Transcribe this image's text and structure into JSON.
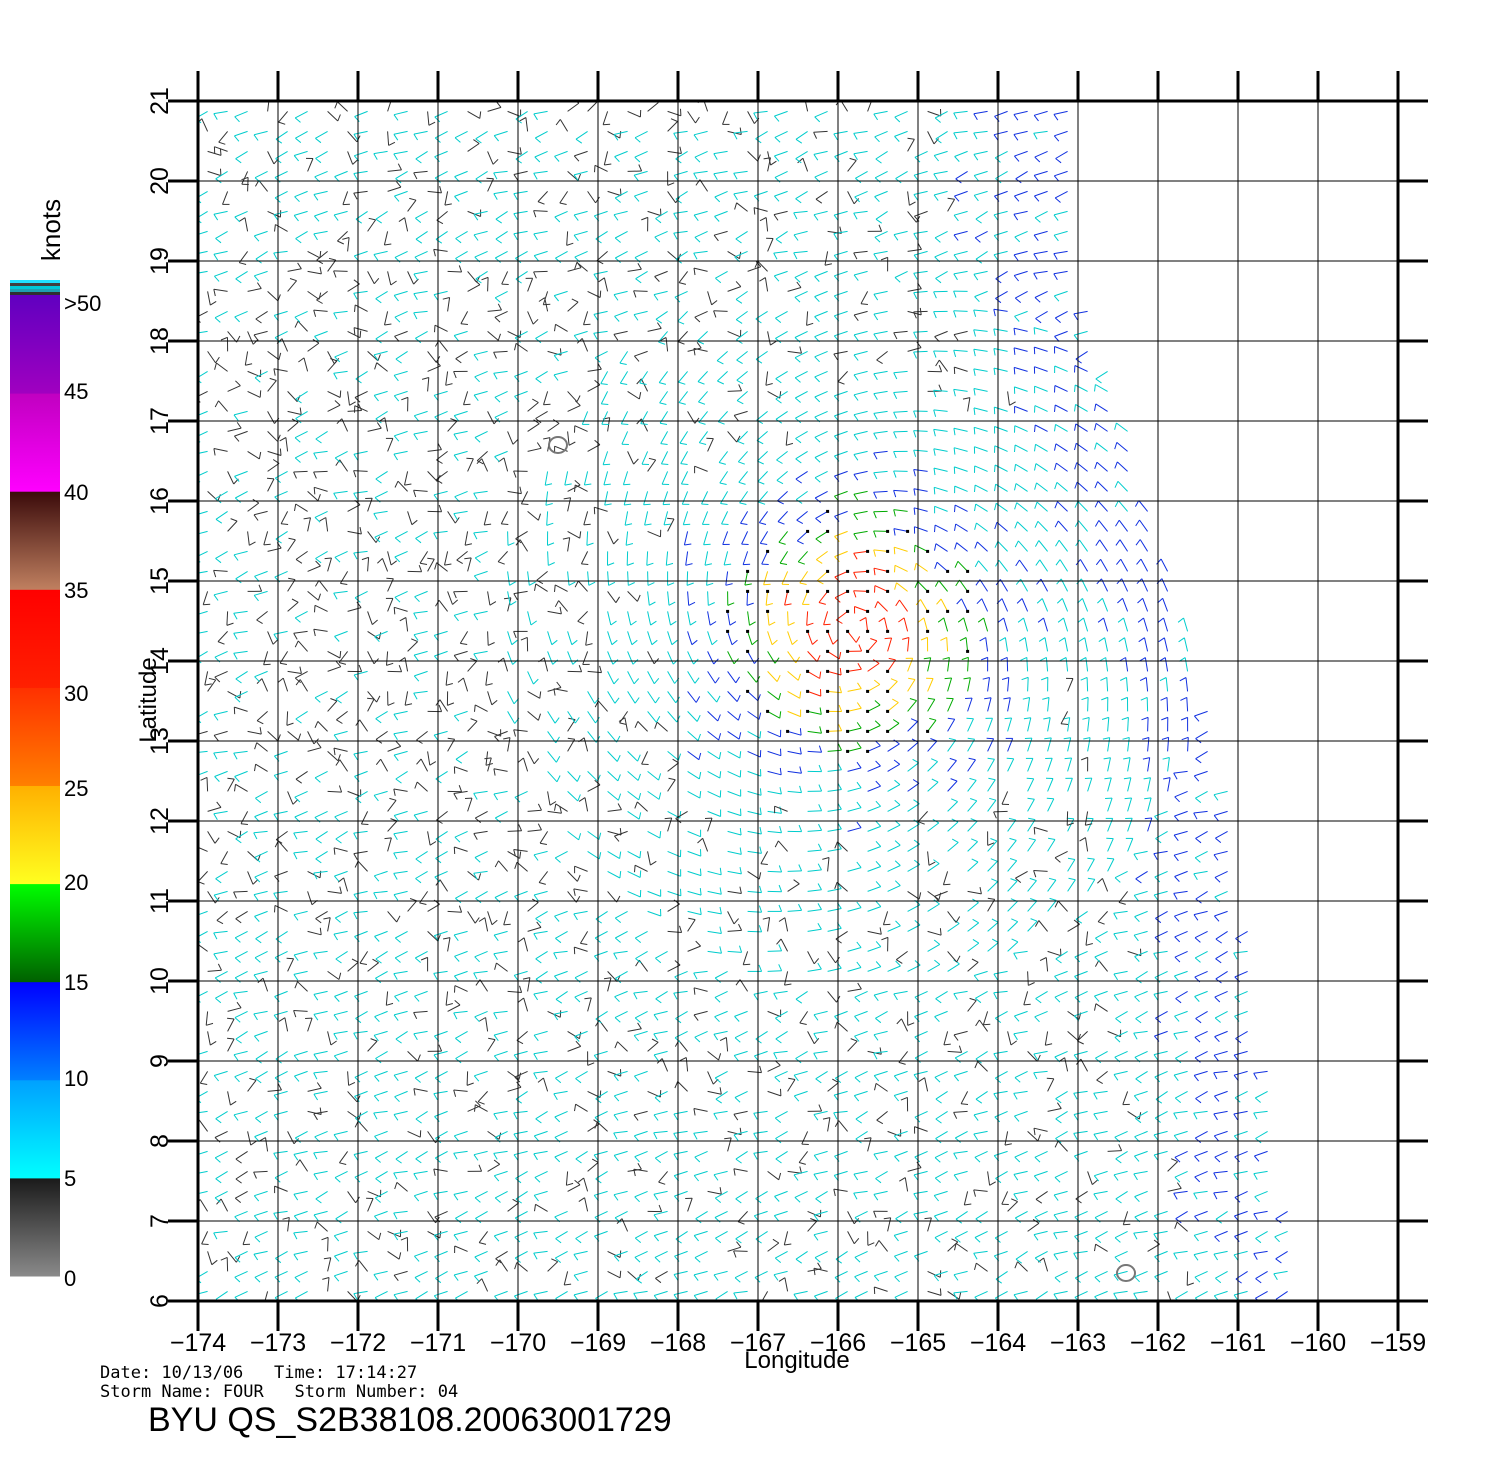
{
  "chart_data": {
    "type": "scatter",
    "plot_kind": "wind barbs (scatterometer vector field)",
    "xlabel": "Longitude",
    "ylabel": "Latitude",
    "xlim": [
      -174,
      -159
    ],
    "ylim": [
      6,
      21
    ],
    "x_ticks": [
      -174,
      -173,
      -172,
      -171,
      -170,
      -169,
      -168,
      -167,
      -166,
      -165,
      -164,
      -163,
      -162,
      -161,
      -160,
      -159
    ],
    "x_tick_labels": [
      "−174",
      "−173",
      "−172",
      "−171",
      "−170",
      "−169",
      "−168",
      "−167",
      "−166",
      "−165",
      "−164",
      "−163",
      "−162",
      "−161",
      "−160",
      "−159"
    ],
    "y_ticks": [
      6,
      7,
      8,
      9,
      10,
      11,
      12,
      13,
      14,
      15,
      16,
      17,
      18,
      19,
      20,
      21
    ],
    "y_tick_labels": [
      "6",
      "7",
      "8",
      "9",
      "10",
      "11",
      "12",
      "13",
      "14",
      "15",
      "16",
      "17",
      "18",
      "19",
      "20",
      "21"
    ],
    "grid": true,
    "swath_edge": [
      [
        -163,
        21
      ],
      [
        -163,
        19
      ],
      [
        -161.2,
        13
      ],
      [
        -160.2,
        6
      ]
    ],
    "land_contours": [
      {
        "lon": -169.5,
        "lat": 16.7
      },
      {
        "lon": -162.4,
        "lat": 6.35
      }
    ],
    "storm_center": {
      "lon": -165.8,
      "lat": 14.4
    },
    "colorbar": {
      "title": "knots",
      "tick_labels": [
        "0",
        "5",
        "10",
        "15",
        "20",
        "25",
        "30",
        "35",
        "40",
        "45",
        ">50"
      ],
      "bands": [
        {
          "from": 0,
          "to": 5,
          "colors": [
            "#8a8a8a",
            "#1a1a1a"
          ]
        },
        {
          "from": 5,
          "to": 10,
          "colors": [
            "#00ffff",
            "#00a0ff"
          ]
        },
        {
          "from": 10,
          "to": 15,
          "colors": [
            "#0080ff",
            "#0000ff"
          ]
        },
        {
          "from": 15,
          "to": 20,
          "colors": [
            "#006000",
            "#00ff00"
          ]
        },
        {
          "from": 20,
          "to": 25,
          "colors": [
            "#ffff20",
            "#ffb000"
          ]
        },
        {
          "from": 25,
          "to": 30,
          "colors": [
            "#ff8000",
            "#ff3000"
          ]
        },
        {
          "from": 30,
          "to": 35,
          "colors": [
            "#ff2000",
            "#ff0000"
          ]
        },
        {
          "from": 35,
          "to": 40,
          "colors": [
            "#c08060",
            "#3a0a0a"
          ]
        },
        {
          "from": 40,
          "to": 45,
          "colors": [
            "#ff00ff",
            "#c000c0"
          ]
        },
        {
          "from": 45,
          "to": 50,
          "colors": [
            "#a000c0",
            "#6000c0"
          ]
        }
      ]
    },
    "speed_colors": {
      "calm": "#333333",
      "light": "#00cccc",
      "moderate": "#1030e0",
      "fresh": "#00aa00",
      "strong": "#ffcc00",
      "gale": "#ff2000",
      "rain_flag": "#000000"
    }
  },
  "footer": {
    "line1": "Date: 10/13/06   Time: 17:14:27",
    "line2": "Storm Name: FOUR   Storm Number: 04",
    "product": "BYU QS_S2B38108.20063001729"
  }
}
